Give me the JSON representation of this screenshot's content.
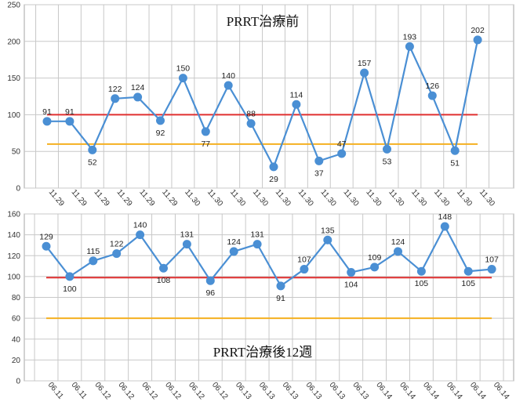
{
  "chart_data": [
    {
      "type": "line",
      "title": "PRRT治療前",
      "ylim": [
        0,
        250
      ],
      "y_ticks": [
        0,
        50,
        100,
        150,
        200,
        250
      ],
      "grid": true,
      "categories": [
        "11.29",
        "11.29",
        "11.29",
        "11.29",
        "11.29",
        "11.29",
        "11.30",
        "11.30",
        "11.30",
        "11.30",
        "11.30",
        "11.30",
        "11.30",
        "11.30",
        "11.30",
        "11.30",
        "11.30",
        "11.30",
        "11.30",
        "11.30"
      ],
      "series": [
        {
          "values": [
            91,
            91,
            52,
            122,
            124,
            92,
            150,
            77,
            140,
            88,
            29,
            114,
            37,
            47,
            157,
            53,
            193,
            126,
            51,
            202
          ],
          "color": "#4a8fd4"
        }
      ],
      "reference_lines": [
        {
          "y": 100,
          "color": "#e03030"
        },
        {
          "y": 60,
          "color": "#f5b020"
        }
      ],
      "label_positions": [
        "above",
        "above",
        "below",
        "above",
        "above",
        "below",
        "above",
        "below",
        "above",
        "above",
        "below",
        "above",
        "below",
        "above",
        "above",
        "below",
        "above",
        "above",
        "below",
        "above"
      ]
    },
    {
      "type": "line",
      "title": "PRRT治療後12週",
      "ylim": [
        0,
        160
      ],
      "y_ticks": [
        0,
        20,
        40,
        60,
        80,
        100,
        120,
        140,
        160
      ],
      "grid": true,
      "categories": [
        "06.11",
        "06.11",
        "06.12",
        "06.12",
        "06.12",
        "06.12",
        "06.12",
        "06.12",
        "06.13",
        "06.13",
        "06.13",
        "06.13",
        "06.13",
        "06.13",
        "06.14",
        "06.14",
        "06.14",
        "06.14",
        "06.14",
        "06.14"
      ],
      "series": [
        {
          "values": [
            129,
            100,
            115,
            122,
            140,
            108,
            131,
            96,
            124,
            131,
            91,
            107,
            135,
            104,
            109,
            124,
            105,
            148,
            105,
            107
          ],
          "color": "#4a8fd4"
        }
      ],
      "reference_lines": [
        {
          "y": 99,
          "color": "#e03030"
        },
        {
          "y": 60,
          "color": "#f5b020"
        }
      ],
      "label_positions": [
        "above",
        "below",
        "above",
        "above",
        "above",
        "below",
        "above",
        "below",
        "above",
        "above",
        "below",
        "above",
        "above",
        "below",
        "above",
        "above",
        "below",
        "above",
        "below",
        "above"
      ]
    }
  ]
}
